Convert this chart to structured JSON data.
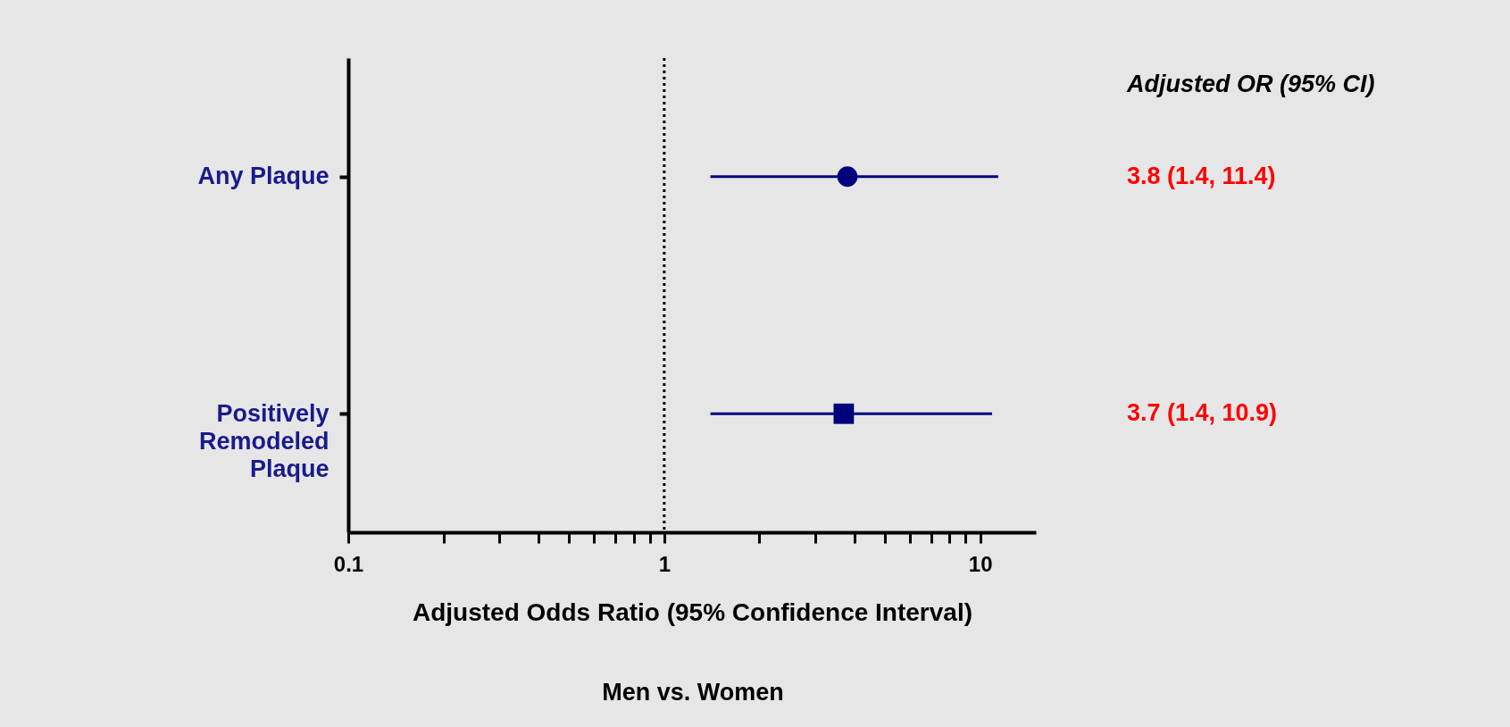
{
  "chart_data": {
    "type": "scatter",
    "orientation": "horizontal",
    "categories": [
      "Any Plaque",
      "Positively Remodeled Plaque"
    ],
    "xlabel": "Adjusted Odds Ratio (95% Confidence Interval)",
    "annotations": [
      "Men vs. Women",
      "Adjusted OR (95% CI)",
      "3.8 (1.4, 11.4)",
      "3.7 (1.4, 10.9)"
    ],
    "log": "x",
    "xlim": [
      0.1,
      15
    ],
    "xticks": [
      0.1,
      {
        "value": 0.2,
        "label": null
      },
      {
        "value": 0.3,
        "label": null
      },
      {
        "value": 0.4,
        "label": null
      },
      {
        "value": 0.5,
        "label": null
      },
      {
        "value": 0.6,
        "label": null
      },
      {
        "value": 0.7,
        "label": null
      },
      {
        "value": 0.8,
        "label": null
      },
      {
        "value": 0.9,
        "label": null
      },
      1,
      {
        "value": 2,
        "label": null
      },
      {
        "value": 3,
        "label": null
      },
      {
        "value": 4,
        "label": null
      },
      {
        "value": 5,
        "label": null
      },
      {
        "value": 6,
        "label": null
      },
      {
        "value": 7,
        "label": null
      },
      {
        "value": 8,
        "label": null
      },
      {
        "value": 9,
        "label": null
      },
      10
    ],
    "ref_lines": [
      {
        "axis": "x",
        "value": 1,
        "line_style": "dotted",
        "color": "#000000"
      }
    ],
    "grid": false,
    "series": [
      {
        "color": "#00007f",
        "marker": "circle",
        "values": [
          3.8,
          null
        ],
        "errors": [
          [
            1.4,
            11.4
          ],
          null
        ]
      },
      {
        "color": "#00007f",
        "marker": "square",
        "values": [
          null,
          3.7
        ],
        "errors": [
          null,
          [
            1.4,
            10.9
          ]
        ]
      }
    ]
  }
}
